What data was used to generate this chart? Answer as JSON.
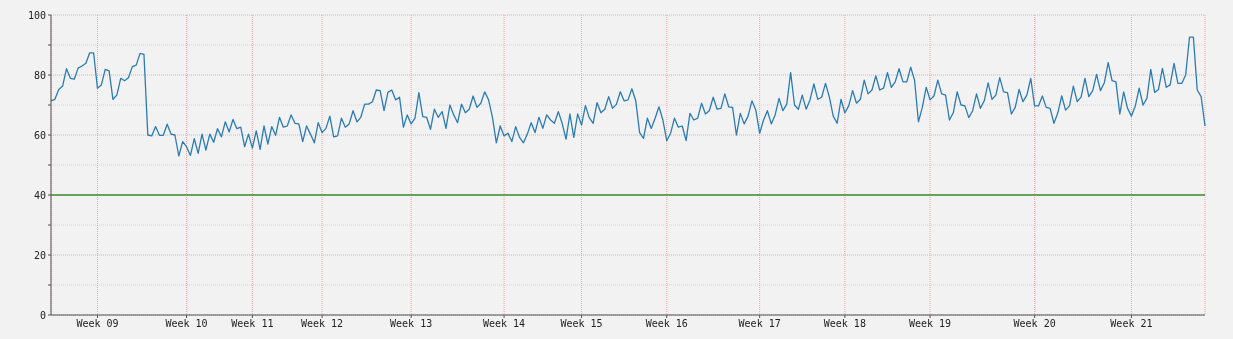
{
  "chart_data": {
    "type": "line",
    "categories": [
      null,
      null,
      null,
      null,
      null,
      null,
      null,
      null,
      null,
      null,
      null,
      null,
      "Week 09",
      null,
      null,
      null,
      null,
      null,
      null,
      null,
      null,
      null,
      null,
      null,
      null,
      null,
      null,
      null,
      null,
      null,
      null,
      null,
      null,
      null,
      null,
      "Week 10",
      null,
      null,
      null,
      null,
      null,
      null,
      null,
      null,
      null,
      null,
      null,
      null,
      null,
      null,
      null,
      null,
      "Week 11",
      null,
      null,
      null,
      null,
      null,
      null,
      null,
      null,
      null,
      null,
      null,
      null,
      null,
      null,
      null,
      null,
      null,
      "Week 12",
      null,
      null,
      null,
      null,
      null,
      null,
      null,
      null,
      null,
      null,
      null,
      null,
      null,
      null,
      null,
      null,
      null,
      null,
      null,
      null,
      null,
      null,
      "Week 13",
      null,
      null,
      null,
      null,
      null,
      null,
      null,
      null,
      null,
      null,
      null,
      null,
      null,
      null,
      null,
      null,
      null,
      null,
      null,
      null,
      null,
      null,
      null,
      "Week 14",
      null,
      null,
      null,
      null,
      null,
      null,
      null,
      null,
      null,
      null,
      null,
      null,
      null,
      null,
      null,
      null,
      null,
      null,
      null,
      "Week 15",
      null,
      null,
      null,
      null,
      null,
      null,
      null,
      null,
      null,
      null,
      null,
      null,
      null,
      null,
      null,
      null,
      null,
      null,
      null,
      null,
      null,
      "Week 16",
      null,
      null,
      null,
      null,
      null,
      null,
      null,
      null,
      null,
      null,
      null,
      null,
      null,
      null,
      null,
      null,
      null,
      null,
      null,
      null,
      null,
      null,
      null,
      "Week 17",
      null,
      null,
      null,
      null,
      null,
      null,
      null,
      null,
      null,
      null,
      null,
      null,
      null,
      null,
      null,
      null,
      null,
      null,
      null,
      null,
      null,
      "Week 18",
      null,
      null,
      null,
      null,
      null,
      null,
      null,
      null,
      null,
      null,
      null,
      null,
      null,
      null,
      null,
      null,
      null,
      null,
      null,
      null,
      null,
      "Week 19",
      null,
      null,
      null,
      null,
      null,
      null,
      null,
      null,
      null,
      null,
      null,
      null,
      null,
      null,
      null,
      null,
      null,
      null,
      null,
      null,
      null,
      null,
      null,
      null,
      null,
      null,
      "Week 20",
      null,
      null,
      null,
      null,
      null,
      null,
      null,
      null,
      null,
      null,
      null,
      null,
      null,
      null,
      null,
      null,
      null,
      null,
      null,
      null,
      null,
      null,
      null,
      null,
      "Week 21",
      null,
      null,
      null,
      null,
      null,
      null,
      null,
      null,
      null,
      null,
      null,
      null,
      null,
      null,
      null,
      null,
      null,
      null,
      null
    ],
    "series": [
      {
        "color": "#2b7bb5",
        "values": [
          71.4,
          71.9,
          75.2,
          76.3,
          82.1,
          78.9,
          78.6,
          82.3,
          83,
          83.9,
          87.4,
          87.4,
          75.6,
          76.7,
          81.9,
          81.4,
          71.9,
          73.3,
          78.9,
          78.1,
          79.1,
          82.8,
          83.3,
          87.2,
          86.9,
          60,
          59.7,
          62.8,
          59.9,
          59.9,
          63.6,
          60.3,
          60,
          53,
          57.8,
          56.1,
          53.2,
          58.8,
          53.9,
          60.3,
          55,
          60.3,
          57.6,
          62.1,
          59.4,
          64.4,
          61,
          65.2,
          62.1,
          62.6,
          56.1,
          60.3,
          55.6,
          61.4,
          55.2,
          63,
          57,
          62.8,
          59.9,
          65.9,
          62.6,
          63,
          66.7,
          63.9,
          63.7,
          57.8,
          63,
          60.3,
          57.4,
          64.1,
          60.8,
          62.2,
          66.3,
          59.4,
          59.7,
          65.6,
          62.6,
          63.7,
          68.1,
          64.4,
          65.9,
          70.3,
          70.3,
          71.1,
          75,
          74.8,
          68.1,
          74.2,
          75,
          71.7,
          72.6,
          62.6,
          66.7,
          63.7,
          65.6,
          74.1,
          66.1,
          65.9,
          61.9,
          68.6,
          65.9,
          67.8,
          62.2,
          70,
          66.7,
          64.1,
          70.3,
          67.4,
          68.6,
          73,
          69.2,
          70.6,
          74.4,
          71.7,
          65.9,
          57.4,
          63,
          59.7,
          60.6,
          57.8,
          62.8,
          59.2,
          57.4,
          60.3,
          64.1,
          60.8,
          65.9,
          62.2,
          66.7,
          65,
          63.9,
          67.8,
          63.9,
          58.6,
          67,
          59.2,
          67,
          63.3,
          69.8,
          65.8,
          63.9,
          70.8,
          67.4,
          68.6,
          72.8,
          68.9,
          70.2,
          74.4,
          71.4,
          71.7,
          75.4,
          71.4,
          60.8,
          58.9,
          65.6,
          62.2,
          65.6,
          69.4,
          65,
          58.1,
          60.6,
          65.6,
          62.6,
          63,
          58.1,
          67.2,
          65,
          65.6,
          70.6,
          67,
          68.1,
          72.6,
          68.6,
          68.9,
          73.7,
          69.4,
          69.2,
          60,
          67.2,
          63.7,
          66.3,
          71.4,
          68.3,
          60.6,
          65,
          68.1,
          63.7,
          66.7,
          72.2,
          68.1,
          70.3,
          80.8,
          70,
          68.6,
          73.3,
          68.6,
          71.7,
          77,
          71.9,
          72.6,
          77.2,
          72.6,
          66.3,
          63.9,
          71.9,
          67.4,
          69.7,
          74.8,
          70.6,
          71.9,
          78.3,
          73.7,
          75,
          79.7,
          75,
          75.6,
          80.8,
          75.9,
          77.7,
          82.1,
          77.7,
          77.7,
          82.6,
          78.3,
          64.4,
          69.2,
          75.9,
          71.7,
          73,
          78.3,
          73.7,
          73.3,
          65,
          67.4,
          74.4,
          70,
          69.7,
          65.8,
          68.1,
          73.7,
          68.9,
          71.4,
          77.4,
          71.9,
          73.3,
          79.1,
          74.4,
          74.1,
          67,
          69.2,
          75.2,
          71.1,
          73.3,
          78.9,
          69.7,
          69.7,
          73,
          69.2,
          68.9,
          63.9,
          67.4,
          73,
          68.3,
          69.7,
          76.3,
          71.1,
          72.6,
          78.9,
          72.8,
          74.8,
          80.2,
          74.8,
          77.4,
          84.1,
          78.1,
          77.7,
          67,
          74.4,
          68.9,
          66.3,
          69.7,
          75.6,
          70,
          72.2,
          81.9,
          74.2,
          75.2,
          82.2,
          75.9,
          76.7,
          83.9,
          77.2,
          77.2,
          80,
          92.6,
          92.6,
          75,
          72.8,
          63
        ]
      }
    ],
    "ylim": [
      0,
      100
    ],
    "yticks": [
      0,
      {
        "value": 10,
        "label": null
      },
      20,
      {
        "value": 30,
        "label": null
      },
      40,
      {
        "value": 50,
        "label": null
      },
      60,
      {
        "value": 70,
        "label": null
      },
      80,
      {
        "value": 90,
        "label": null
      },
      100
    ],
    "grid": true,
    "ref_lines": [
      {
        "axis": "y",
        "value": 40,
        "color": "#3d8c2e"
      }
    ]
  }
}
